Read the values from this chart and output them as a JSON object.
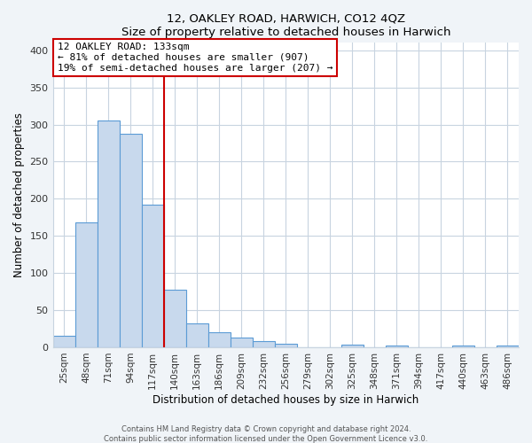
{
  "title": "12, OAKLEY ROAD, HARWICH, CO12 4QZ",
  "subtitle": "Size of property relative to detached houses in Harwich",
  "xlabel": "Distribution of detached houses by size in Harwich",
  "ylabel": "Number of detached properties",
  "bar_labels": [
    "25sqm",
    "48sqm",
    "71sqm",
    "94sqm",
    "117sqm",
    "140sqm",
    "163sqm",
    "186sqm",
    "209sqm",
    "232sqm",
    "256sqm",
    "279sqm",
    "302sqm",
    "325sqm",
    "348sqm",
    "371sqm",
    "394sqm",
    "417sqm",
    "440sqm",
    "463sqm",
    "486sqm"
  ],
  "bar_heights": [
    15,
    168,
    305,
    288,
    192,
    78,
    32,
    20,
    13,
    8,
    5,
    0,
    0,
    3,
    0,
    2,
    0,
    0,
    2,
    0,
    2
  ],
  "bar_color": "#c8d9ed",
  "bar_edge_color": "#5b9bd5",
  "vline_pos": 4.5,
  "vline_color": "#cc0000",
  "annotation_title": "12 OAKLEY ROAD: 133sqm",
  "annotation_line1": "← 81% of detached houses are smaller (907)",
  "annotation_line2": "19% of semi-detached houses are larger (207) →",
  "annotation_box_color": "#cc0000",
  "ylim": [
    0,
    410
  ],
  "yticks": [
    0,
    50,
    100,
    150,
    200,
    250,
    300,
    350,
    400
  ],
  "footer1": "Contains HM Land Registry data © Crown copyright and database right 2024.",
  "footer2": "Contains public sector information licensed under the Open Government Licence v3.0.",
  "fig_bg_color": "#f0f4f8",
  "plot_bg_color": "#ffffff",
  "grid_color": "#c8d4e0"
}
